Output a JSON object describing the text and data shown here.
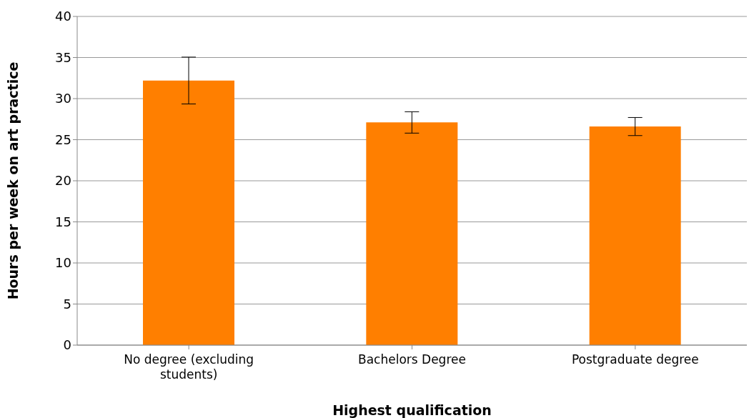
{
  "chart_data": {
    "type": "bar",
    "xlabel": "Highest qualification",
    "ylabel": "Hours per week on art practice",
    "categories": [
      "No degree (excluding students)",
      "Bachelors Degree",
      "Postgraduate degree"
    ],
    "values": [
      32.2,
      27.1,
      26.6
    ],
    "errors": [
      2.85,
      1.3,
      1.1
    ],
    "color": "#ff7f00",
    "ylim": [
      0,
      40
    ],
    "yticks": [
      0,
      5,
      10,
      15,
      20,
      25,
      30,
      35,
      40
    ],
    "grid": "y"
  }
}
